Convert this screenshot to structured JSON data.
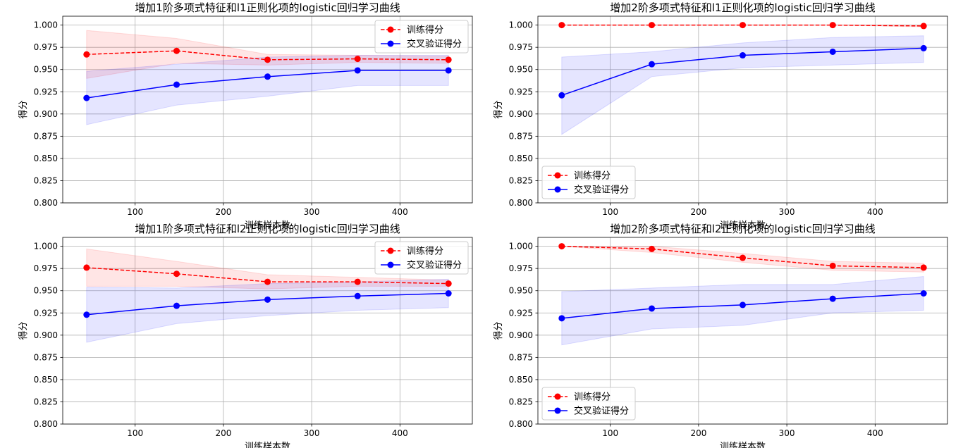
{
  "chart_data": [
    {
      "type": "line",
      "title": "增加1阶多项式特征和l1正则化项的logistic回归学习曲线",
      "xlabel": "训练样本数",
      "ylabel": "得分",
      "xlim": [
        18,
        482
      ],
      "ylim": [
        0.8,
        1.01
      ],
      "xticks": [
        100,
        200,
        300,
        400
      ],
      "yticks": [
        0.8,
        0.825,
        0.85,
        0.875,
        0.9,
        0.925,
        0.95,
        0.975,
        1.0
      ],
      "ytick_labels": [
        "0.800",
        "0.825",
        "0.850",
        "0.875",
        "0.900",
        "0.925",
        "0.950",
        "0.975",
        "1.000"
      ],
      "grid": true,
      "legend_position": "upper right",
      "x": [
        45,
        147,
        250,
        352,
        455
      ],
      "series": [
        {
          "name": "训练得分",
          "color": "#ff0000",
          "fill": "#ff0000",
          "linestyle": "dashed",
          "values": [
            0.967,
            0.971,
            0.961,
            0.962,
            0.961
          ],
          "lower": [
            0.94,
            0.957,
            0.955,
            0.958,
            0.957
          ],
          "upper": [
            0.994,
            0.985,
            0.967,
            0.966,
            0.965
          ]
        },
        {
          "name": "交叉验证得分",
          "color": "#0000ff",
          "fill": "#0000ff",
          "linestyle": "solid",
          "values": [
            0.918,
            0.933,
            0.942,
            0.949,
            0.949
          ],
          "lower": [
            0.888,
            0.91,
            0.92,
            0.932,
            0.932
          ],
          "upper": [
            0.948,
            0.956,
            0.964,
            0.966,
            0.966
          ]
        }
      ]
    },
    {
      "type": "line",
      "title": "增加2阶多项式特征和l1正则化项的logistic回归学习曲线",
      "xlabel": "训练样本数",
      "ylabel": "得分",
      "xlim": [
        18,
        482
      ],
      "ylim": [
        0.8,
        1.01
      ],
      "xticks": [
        100,
        200,
        300,
        400
      ],
      "yticks": [
        0.8,
        0.825,
        0.85,
        0.875,
        0.9,
        0.925,
        0.95,
        0.975,
        1.0
      ],
      "ytick_labels": [
        "0.800",
        "0.825",
        "0.850",
        "0.875",
        "0.900",
        "0.925",
        "0.950",
        "0.975",
        "1.000"
      ],
      "grid": true,
      "legend_position": "lower left",
      "x": [
        45,
        147,
        250,
        352,
        455
      ],
      "series": [
        {
          "name": "训练得分",
          "color": "#ff0000",
          "fill": "#ff0000",
          "linestyle": "dashed",
          "values": [
            1.0,
            1.0,
            1.0,
            1.0,
            0.999
          ],
          "lower": [
            1.0,
            1.0,
            1.0,
            1.0,
            0.998
          ],
          "upper": [
            1.0,
            1.0,
            1.0,
            1.0,
            1.0
          ]
        },
        {
          "name": "交叉验证得分",
          "color": "#0000ff",
          "fill": "#0000ff",
          "linestyle": "solid",
          "values": [
            0.921,
            0.956,
            0.966,
            0.97,
            0.974
          ],
          "lower": [
            0.877,
            0.942,
            0.952,
            0.955,
            0.958
          ],
          "upper": [
            0.964,
            0.97,
            0.98,
            0.986,
            0.988
          ]
        }
      ]
    },
    {
      "type": "line",
      "title": "增加1阶多项式特征和l2正则化项的logistic回归学习曲线",
      "xlabel": "训练样本数",
      "ylabel": "得分",
      "xlim": [
        18,
        482
      ],
      "ylim": [
        0.8,
        1.01
      ],
      "xticks": [
        100,
        200,
        300,
        400
      ],
      "yticks": [
        0.8,
        0.825,
        0.85,
        0.875,
        0.9,
        0.925,
        0.95,
        0.975,
        1.0
      ],
      "ytick_labels": [
        "0.800",
        "0.825",
        "0.850",
        "0.875",
        "0.900",
        "0.925",
        "0.950",
        "0.975",
        "1.000"
      ],
      "grid": true,
      "legend_position": "upper right",
      "x": [
        45,
        147,
        250,
        352,
        455
      ],
      "series": [
        {
          "name": "训练得分",
          "color": "#ff0000",
          "fill": "#ff0000",
          "linestyle": "dashed",
          "values": [
            0.976,
            0.969,
            0.96,
            0.96,
            0.958
          ],
          "lower": [
            0.955,
            0.955,
            0.952,
            0.955,
            0.955
          ],
          "upper": [
            0.997,
            0.983,
            0.968,
            0.965,
            0.962
          ]
        },
        {
          "name": "交叉验证得分",
          "color": "#0000ff",
          "fill": "#0000ff",
          "linestyle": "solid",
          "values": [
            0.923,
            0.933,
            0.94,
            0.944,
            0.947
          ],
          "lower": [
            0.892,
            0.913,
            0.922,
            0.928,
            0.931
          ],
          "upper": [
            0.954,
            0.953,
            0.958,
            0.96,
            0.963
          ]
        }
      ]
    },
    {
      "type": "line",
      "title": "增加2阶多项式特征和l2正则化项的logistic回归学习曲线",
      "xlabel": "训练样本数",
      "ylabel": "得分",
      "xlim": [
        18,
        482
      ],
      "ylim": [
        0.8,
        1.01
      ],
      "xticks": [
        100,
        200,
        300,
        400
      ],
      "yticks": [
        0.8,
        0.825,
        0.85,
        0.875,
        0.9,
        0.925,
        0.95,
        0.975,
        1.0
      ],
      "ytick_labels": [
        "0.800",
        "0.825",
        "0.850",
        "0.875",
        "0.900",
        "0.925",
        "0.950",
        "0.975",
        "1.000"
      ],
      "grid": true,
      "legend_position": "lower left",
      "x": [
        45,
        147,
        250,
        352,
        455
      ],
      "series": [
        {
          "name": "训练得分",
          "color": "#ff0000",
          "fill": "#ff0000",
          "linestyle": "dashed",
          "values": [
            1.0,
            0.997,
            0.987,
            0.978,
            0.976
          ],
          "lower": [
            1.0,
            0.993,
            0.982,
            0.973,
            0.971
          ],
          "upper": [
            1.0,
            1.0,
            0.992,
            0.983,
            0.981
          ]
        },
        {
          "name": "交叉验证得分",
          "color": "#0000ff",
          "fill": "#0000ff",
          "linestyle": "solid",
          "values": [
            0.919,
            0.93,
            0.934,
            0.941,
            0.947
          ],
          "lower": [
            0.889,
            0.907,
            0.911,
            0.925,
            0.928
          ],
          "upper": [
            0.949,
            0.953,
            0.957,
            0.957,
            0.966
          ]
        }
      ]
    }
  ]
}
